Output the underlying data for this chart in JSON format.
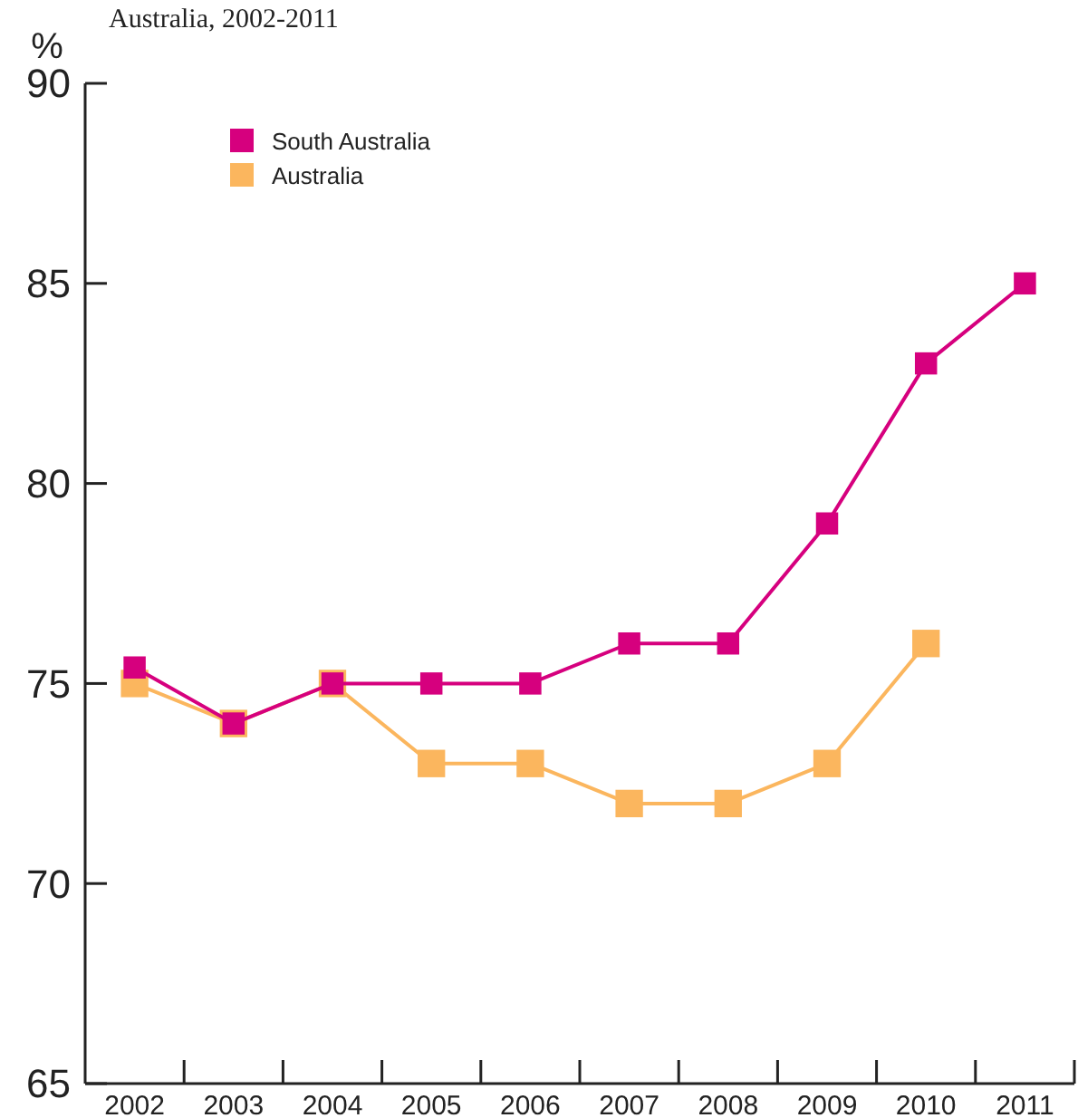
{
  "chart_data": {
    "type": "line",
    "title": "Australia, 2002-2011",
    "ylabel": "%",
    "categories": [
      "2002",
      "2003",
      "2004",
      "2005",
      "2006",
      "2007",
      "2008",
      "2009",
      "2010",
      "2011"
    ],
    "series": [
      {
        "name": "South Australia",
        "color": "#d6007e",
        "values": [
          75.4,
          74,
          75,
          75,
          75,
          76,
          76,
          79,
          83,
          85
        ]
      },
      {
        "name": "Australia",
        "color": "#fbb65e",
        "values": [
          75,
          74,
          75,
          73,
          73,
          72,
          72,
          73,
          76,
          null
        ]
      }
    ],
    "ylim": [
      65,
      90
    ],
    "yticks": [
      65,
      70,
      75,
      80,
      85,
      90
    ],
    "grid": false,
    "legend": "top left",
    "marker": "square",
    "line_style": "solid"
  }
}
